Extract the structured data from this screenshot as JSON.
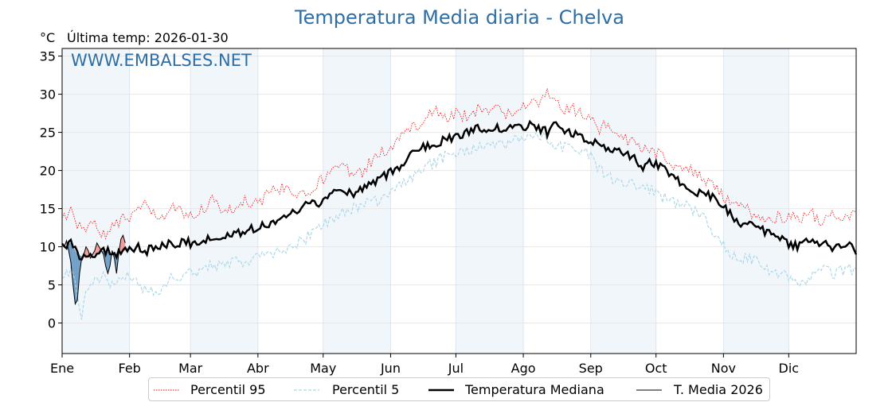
{
  "title": "Temperatura Media diaria - Chelva",
  "unit_label": "°C",
  "last_temp_label": "Última temp: 2026-01-30",
  "watermark": "WWW.EMBALSES.NET",
  "colors": {
    "p95": "#ff0000",
    "p5": "#add8e6",
    "median": "#000000",
    "current": "#000000",
    "below_fill": "#4682b4",
    "above_fill": "#f08080",
    "band": "#e8f0f8",
    "title": "#2f6ea5"
  },
  "legend": {
    "p95": "Percentil 95",
    "p5": "Percentil 5",
    "median": "Temperatura Mediana",
    "current": "T. Media 2026"
  },
  "chart_data": {
    "type": "line",
    "title": "Temperatura Media diaria - Chelva",
    "ylabel": "°C",
    "xlim": [
      1,
      366
    ],
    "ylim": [
      -4,
      36
    ],
    "yticks": [
      0,
      5,
      10,
      15,
      20,
      25,
      30,
      35
    ],
    "month_labels": [
      "Ene",
      "Feb",
      "Mar",
      "Abr",
      "May",
      "Jun",
      "Jul",
      "Ago",
      "Sep",
      "Oct",
      "Nov",
      "Dic"
    ],
    "month_start_days": [
      1,
      32,
      60,
      91,
      121,
      152,
      182,
      213,
      244,
      274,
      305,
      335
    ],
    "grid": true,
    "legend_position": "bottom",
    "series": [
      {
        "name": "Percentil 95",
        "style": "dotted-red",
        "x": [
          1,
          5,
          10,
          15,
          20,
          25,
          32,
          40,
          46,
          52,
          60,
          66,
          70,
          75,
          80,
          85,
          91,
          97,
          100,
          104,
          110,
          115,
          121,
          126,
          130,
          135,
          140,
          145,
          150,
          155,
          160,
          166,
          172,
          178,
          182,
          188,
          192,
          196,
          200,
          205,
          210,
          213,
          216,
          220,
          224,
          228,
          232,
          236,
          240,
          244,
          248,
          252,
          256,
          260,
          264,
          268,
          272,
          276,
          280,
          285,
          290,
          295,
          300,
          305,
          310,
          315,
          320,
          325,
          330,
          335,
          340,
          345,
          350,
          355,
          360,
          366
        ],
        "y": [
          13.5,
          14.5,
          12,
          13,
          11.5,
          13,
          14,
          15.5,
          13,
          15.5,
          14,
          15,
          16,
          14.5,
          15,
          16,
          15.5,
          17.5,
          17,
          18,
          17,
          17.5,
          19,
          20.5,
          21,
          19,
          20,
          22,
          22.5,
          24,
          25.5,
          26,
          28,
          26.5,
          27.5,
          27,
          28,
          27.5,
          28,
          27.5,
          28,
          28.5,
          29,
          28.5,
          30.5,
          29,
          28,
          28,
          27.5,
          26.5,
          25.5,
          26,
          24.5,
          24,
          23.5,
          23,
          22.5,
          22,
          21,
          20.5,
          20,
          19,
          18,
          16.5,
          16,
          15,
          14,
          13.5,
          14,
          14,
          13.5,
          14.5,
          13,
          14,
          13.5,
          14.5
        ]
      },
      {
        "name": "Percentil 5",
        "style": "dashed-lightblue",
        "x": [
          1,
          5,
          8,
          10,
          12,
          16,
          20,
          25,
          30,
          35,
          40,
          46,
          52,
          60,
          66,
          70,
          75,
          80,
          85,
          91,
          97,
          100,
          104,
          110,
          115,
          121,
          126,
          130,
          135,
          140,
          145,
          150,
          155,
          160,
          166,
          172,
          178,
          182,
          188,
          192,
          196,
          200,
          205,
          210,
          213,
          216,
          220,
          224,
          228,
          232,
          236,
          240,
          244,
          248,
          252,
          256,
          260,
          264,
          268,
          272,
          276,
          280,
          285,
          290,
          295,
          300,
          305,
          310,
          315,
          320,
          325,
          330,
          335,
          340,
          345,
          350,
          355,
          360,
          366
        ],
        "y": [
          6.5,
          7,
          4,
          1,
          5,
          5.5,
          6,
          5,
          6,
          5.5,
          4,
          4.5,
          6,
          6.5,
          7,
          7.5,
          8,
          8,
          8,
          8.5,
          9,
          10,
          9.5,
          10.5,
          11.5,
          13,
          13.5,
          14.5,
          15,
          15.5,
          16,
          16.5,
          18,
          19,
          20,
          21,
          22,
          22.5,
          22.5,
          23,
          23,
          23.5,
          23.5,
          24,
          24.5,
          24,
          25,
          24,
          23.5,
          23,
          23,
          22.5,
          22,
          20,
          19.5,
          18.5,
          18.5,
          18,
          17.5,
          17.5,
          16.5,
          16,
          15.5,
          15,
          14,
          12,
          10,
          9,
          8.5,
          8,
          7,
          6.5,
          6,
          5,
          6,
          7,
          6.5,
          7,
          7
        ]
      },
      {
        "name": "Temperatura Mediana",
        "style": "solid-black-thick",
        "x": [
          1,
          5,
          8,
          12,
          16,
          20,
          25,
          30,
          35,
          40,
          46,
          52,
          60,
          66,
          70,
          75,
          80,
          85,
          91,
          97,
          100,
          104,
          110,
          115,
          121,
          126,
          130,
          135,
          140,
          145,
          150,
          155,
          160,
          166,
          172,
          178,
          182,
          188,
          192,
          196,
          200,
          205,
          210,
          213,
          216,
          220,
          224,
          228,
          232,
          236,
          240,
          244,
          248,
          252,
          256,
          260,
          264,
          268,
          272,
          276,
          280,
          285,
          290,
          295,
          300,
          305,
          310,
          315,
          320,
          325,
          330,
          335,
          340,
          345,
          350,
          355,
          360,
          366
        ],
        "y": [
          10,
          10.5,
          9,
          8.5,
          9,
          9.5,
          9,
          9.5,
          10,
          9.5,
          10,
          10.5,
          10.5,
          11,
          11,
          11.5,
          11.5,
          12,
          12.5,
          13,
          13.5,
          14,
          15,
          15.5,
          16,
          17.5,
          17,
          17,
          18,
          18.5,
          19.5,
          20,
          22,
          23,
          23.5,
          24,
          24.5,
          25,
          25.5,
          25,
          25.5,
          25.5,
          25.5,
          25.5,
          26,
          25.5,
          25,
          26,
          25,
          25,
          24.5,
          24,
          23.5,
          23,
          22.5,
          22,
          21.5,
          20.5,
          21,
          20.5,
          19.5,
          18.5,
          17.5,
          17,
          16.5,
          15.5,
          13.5,
          13,
          12.5,
          12,
          11.5,
          10.5,
          10,
          11,
          10.5,
          10,
          10.5,
          9.5
        ]
      },
      {
        "name": "T. Media 2026",
        "style": "solid-black-thin",
        "x": [
          1,
          2,
          3,
          4,
          5,
          6,
          7,
          8,
          9,
          10,
          11,
          12,
          13,
          14,
          15,
          16,
          17,
          18,
          19,
          20,
          21,
          22,
          23,
          24,
          25,
          26,
          27,
          28,
          29,
          30
        ],
        "y": [
          10.5,
          10,
          10.8,
          9.5,
          8,
          5,
          2.5,
          3,
          6.5,
          8.5,
          9,
          10,
          9.5,
          8.5,
          9,
          9.5,
          10.5,
          10,
          9.5,
          9,
          7.5,
          6.5,
          7.5,
          9.5,
          8.5,
          6.5,
          9,
          11,
          11.5,
          10.5
        ]
      }
    ]
  }
}
